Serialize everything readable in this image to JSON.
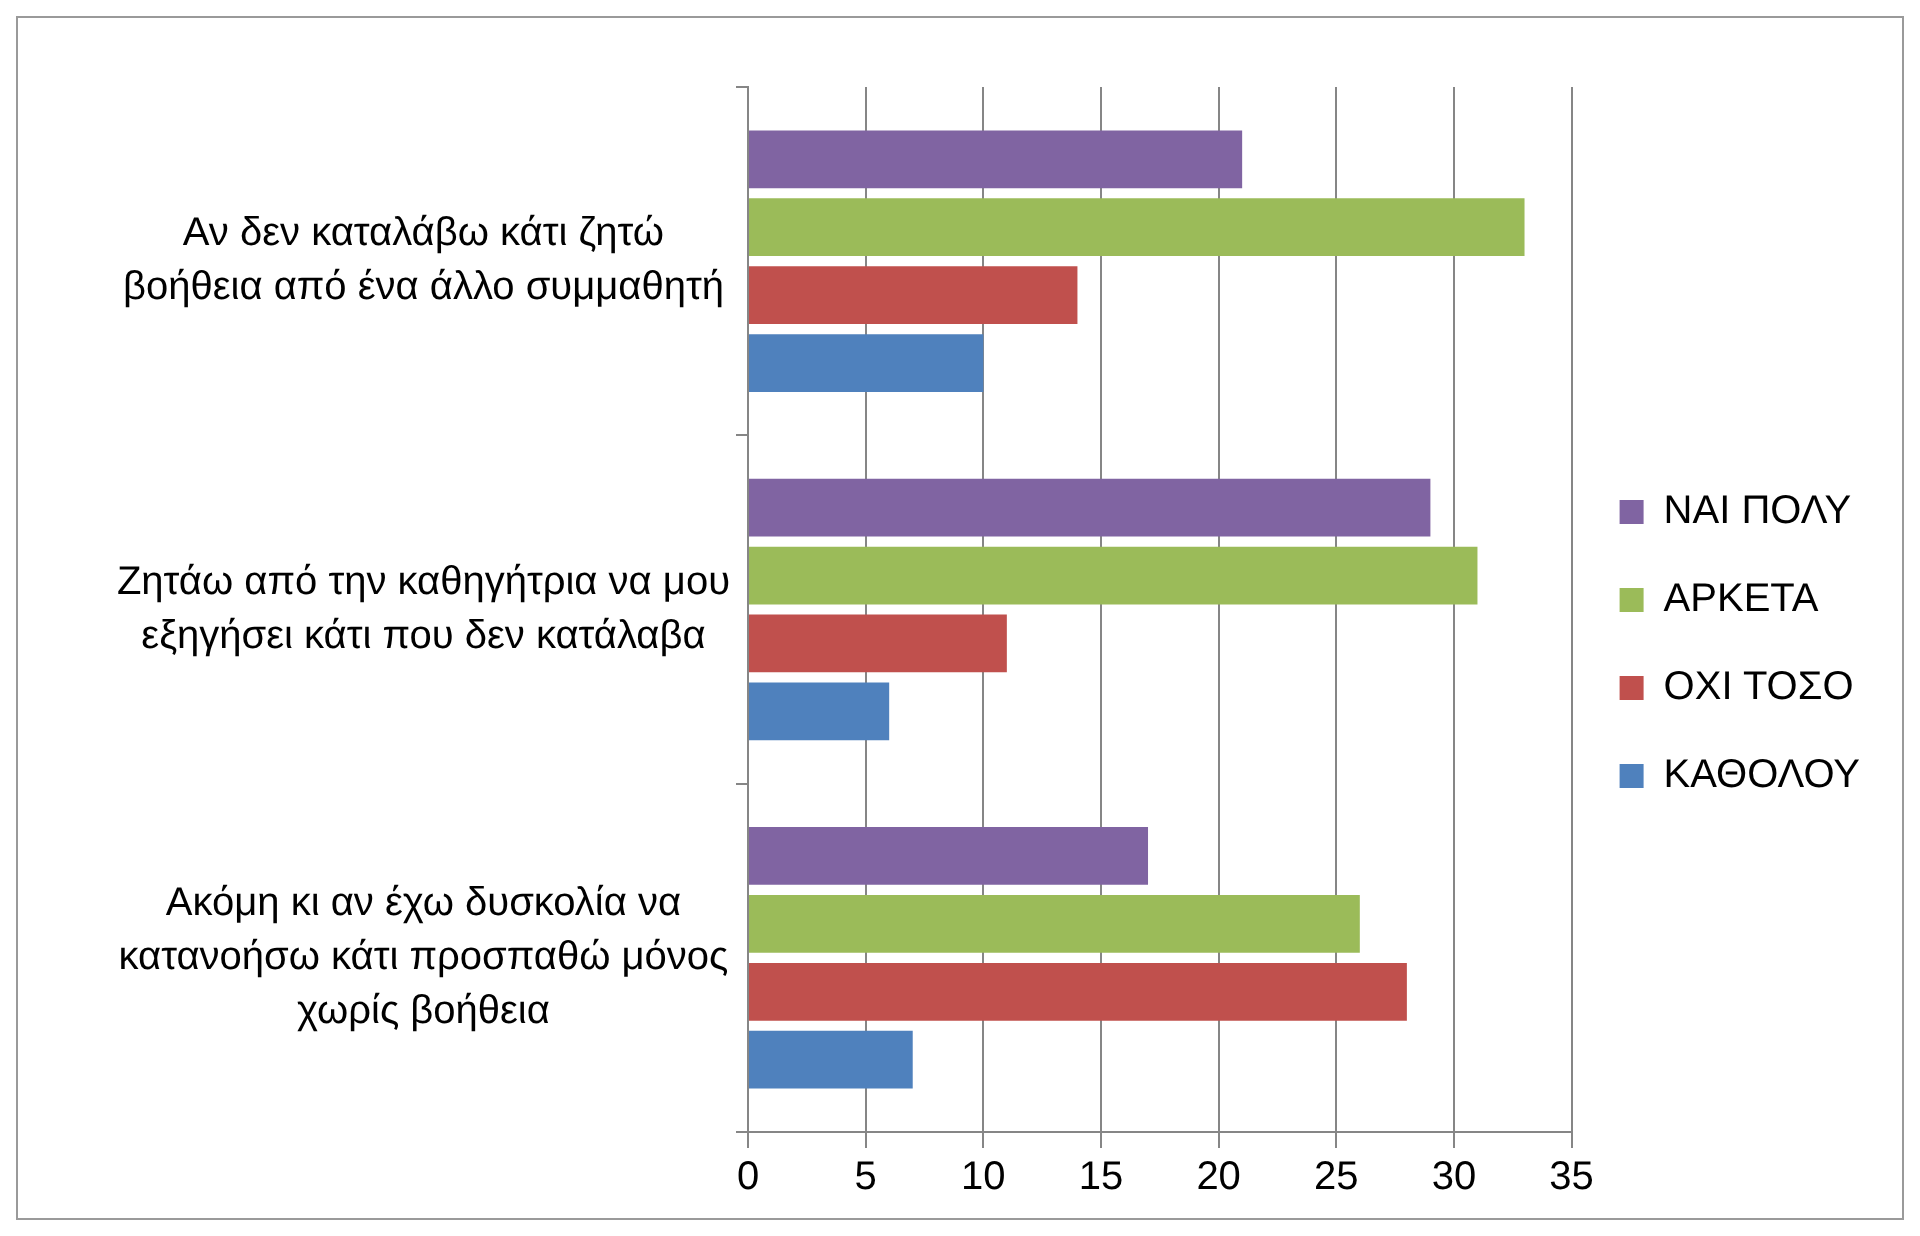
{
  "chart_data": {
    "type": "bar",
    "orientation": "horizontal",
    "categories": [
      "Αν δεν καταλάβω κάτι ζητώ βοήθεια από ένα άλλο συμμαθητή",
      "Ζητάω από την καθηγήτρια να μου εξηγήσει κάτι που δεν κατάλαβα",
      "Ακόμη κι αν έχω δυσκολία να κατανοήσω κάτι προσπαθώ μόνος χωρίς βοήθεια"
    ],
    "series": [
      {
        "name": "ΝΑΙ ΠΟΛΥ",
        "color": "#8064a2",
        "values": [
          21,
          29,
          17
        ]
      },
      {
        "name": "ΑΡΚΕΤΑ",
        "color": "#9bbb59",
        "values": [
          33,
          31,
          26
        ]
      },
      {
        "name": "ΟΧΙ ΤΟΣΟ",
        "color": "#c0504d",
        "values": [
          14,
          11,
          28
        ]
      },
      {
        "name": "ΚΑΘΟΛΟΥ",
        "color": "#4f81bd",
        "values": [
          10,
          6,
          7
        ]
      }
    ],
    "xlim": [
      0,
      35
    ],
    "xticks": [
      0,
      5,
      10,
      15,
      20,
      25,
      30,
      35
    ],
    "grid": "x",
    "legend": "right"
  }
}
